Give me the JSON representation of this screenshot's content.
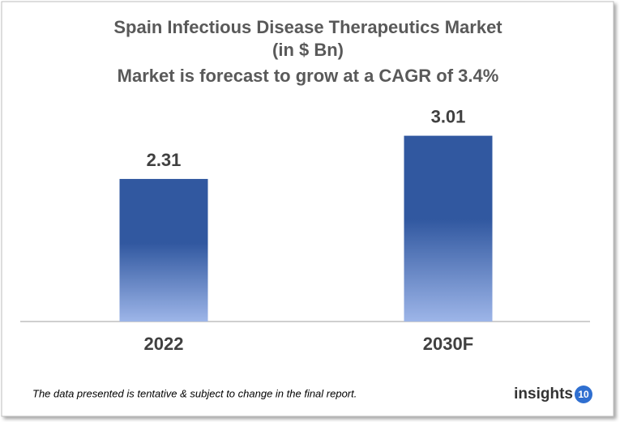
{
  "chart_data": {
    "type": "bar",
    "title": "Spain Infectious Disease Therapeutics Market",
    "unit": "(in $ Bn)",
    "subtitle": "Market is forecast to grow at a CAGR of 3.4%",
    "categories": [
      "2022",
      "2030F"
    ],
    "values": [
      2.31,
      3.01
    ],
    "color": "#3158a0"
  },
  "footnote": "The data presented is tentative & subject to change in the final report.",
  "logo": {
    "text": "insights",
    "badge": "10"
  }
}
